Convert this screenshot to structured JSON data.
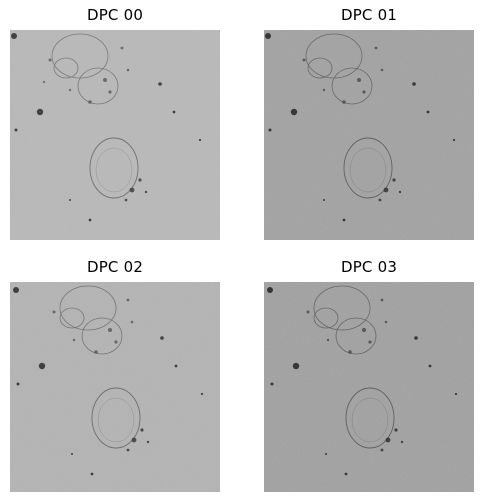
{
  "panels": [
    {
      "title": "DPC 00",
      "tone": "#b9b9b9"
    },
    {
      "title": "DPC 01",
      "tone": "#a3a3a3"
    },
    {
      "title": "DPC 02",
      "tone": "#b4b4b4"
    },
    {
      "title": "DPC 03",
      "tone": "#a2a2a2"
    }
  ]
}
